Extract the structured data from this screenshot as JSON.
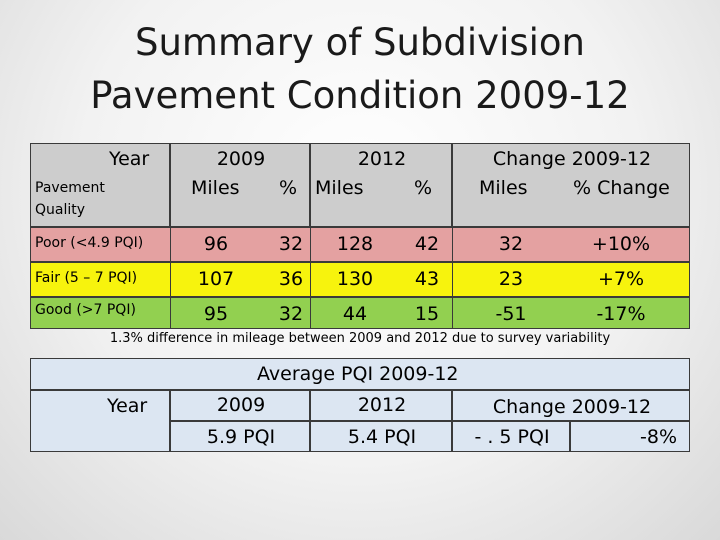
{
  "title_line1": "Summary of Subdivision",
  "title_line2": "Pavement Condition 2009-12",
  "table": {
    "year_label": "Year",
    "quality_label": "Pavement Quality",
    "col_2009": "2009",
    "col_2012": "2012",
    "col_change": "Change 2009-12",
    "miles": "Miles",
    "pct": "%",
    "pct_change": "% Change",
    "rows": [
      {
        "label": "Poor (<4.9 PQI)",
        "m2009": "96",
        "p2009": "32",
        "m2012": "128",
        "p2012": "42",
        "cm": "32",
        "cp": "+10%",
        "color": "#e4a1a1"
      },
      {
        "label": "Fair (5 – 7 PQI)",
        "m2009": "107",
        "p2009": "36",
        "m2012": "130",
        "p2012": "43",
        "cm": "23",
        "cp": "+7%",
        "color": "#f7f30d"
      },
      {
        "label": "Good (>7 PQI)",
        "m2009": "95",
        "p2009": "32",
        "m2012": "44",
        "p2012": "15",
        "cm": "-51",
        "cp": "-17%",
        "color": "#92d050"
      }
    ],
    "header_color": "#cdcdcd"
  },
  "note": "1.3% difference in mileage between 2009 and 2012 due to survey variability",
  "pqi": {
    "heading": "Average PQI 2009-12",
    "year_label": "Year",
    "col_2009": "2009",
    "col_2012": "2012",
    "col_change": "Change 2009-12",
    "v2009": "5.9 PQI",
    "v2012": "5.4 PQI",
    "change_pqi": "- . 5 PQI",
    "change_pct": "-8%",
    "fill_color": "#dce6f2"
  }
}
